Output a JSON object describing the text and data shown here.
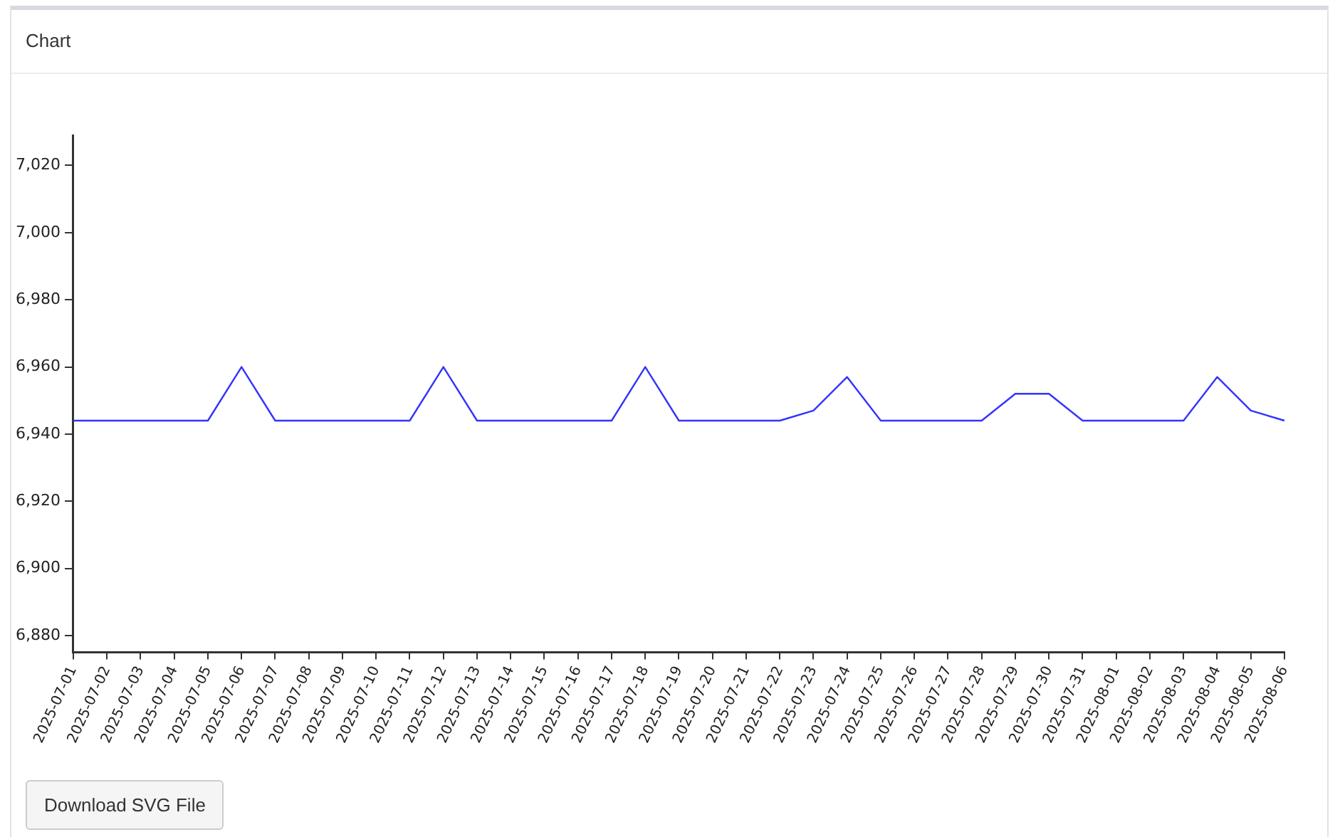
{
  "chart_data": {
    "type": "line",
    "title": "Chart",
    "categories": [
      "2025-07-01",
      "2025-07-02",
      "2025-07-03",
      "2025-07-04",
      "2025-07-05",
      "2025-07-06",
      "2025-07-07",
      "2025-07-08",
      "2025-07-09",
      "2025-07-10",
      "2025-07-11",
      "2025-07-12",
      "2025-07-13",
      "2025-07-14",
      "2025-07-15",
      "2025-07-16",
      "2025-07-17",
      "2025-07-18",
      "2025-07-19",
      "2025-07-20",
      "2025-07-21",
      "2025-07-22",
      "2025-07-23",
      "2025-07-24",
      "2025-07-25",
      "2025-07-26",
      "2025-07-27",
      "2025-07-28",
      "2025-07-29",
      "2025-07-30",
      "2025-07-31",
      "2025-08-01",
      "2025-08-02",
      "2025-08-03",
      "2025-08-04",
      "2025-08-05",
      "2025-08-06"
    ],
    "series": [
      {
        "color": "#3333ff",
        "values": [
          6944,
          6944,
          6944,
          6944,
          6944,
          6960,
          6944,
          6944,
          6944,
          6944,
          6944,
          6960,
          6944,
          6944,
          6944,
          6944,
          6944,
          6960,
          6944,
          6944,
          6944,
          6944,
          6947,
          6957,
          6944,
          6944,
          6944,
          6944,
          6952,
          6952,
          6944,
          6944,
          6944,
          6944,
          6957,
          6947,
          6944
        ]
      }
    ],
    "ylim": [
      6875,
      7029
    ],
    "yticks": [
      {
        "value": 6880,
        "label": "6,880"
      },
      {
        "value": 6900,
        "label": "6,900"
      },
      {
        "value": 6920,
        "label": "6,920"
      },
      {
        "value": 6940,
        "label": "6,940"
      },
      {
        "value": 6960,
        "label": "6,960"
      },
      {
        "value": 6980,
        "label": "6,980"
      },
      {
        "value": 7000,
        "label": "7,000"
      },
      {
        "value": 7020,
        "label": "7,020"
      }
    ],
    "grid": false,
    "legend": false,
    "marker": "none",
    "line_style": "solid",
    "annotations": [
      "Download SVG File"
    ]
  }
}
